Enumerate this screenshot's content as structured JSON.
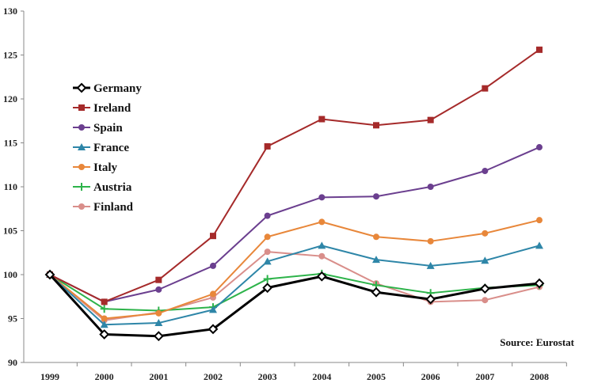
{
  "chart_data": {
    "type": "line",
    "title": "",
    "xlabel": "",
    "ylabel": "",
    "ylim": [
      90,
      130
    ],
    "yticks": [
      90,
      95,
      100,
      105,
      110,
      115,
      120,
      125,
      130
    ],
    "categories": [
      "1999",
      "2000",
      "2001",
      "2002",
      "2003",
      "2004",
      "2005",
      "2006",
      "2007",
      "2008"
    ],
    "grid": false,
    "legend_position": "left-middle",
    "source_note": "Source: Eurostat",
    "series": [
      {
        "name": "Germany",
        "color": "#000000",
        "marker": "diamond",
        "values": [
          100,
          93.2,
          93.0,
          93.8,
          98.5,
          99.8,
          98.0,
          97.2,
          98.4,
          99.0
        ]
      },
      {
        "name": "Ireland",
        "color": "#a52a2a",
        "marker": "square",
        "values": [
          100,
          96.9,
          99.4,
          104.4,
          114.6,
          117.7,
          117.0,
          117.6,
          121.2,
          125.6
        ]
      },
      {
        "name": "Spain",
        "color": "#6b3f8f",
        "marker": "circle",
        "values": [
          100,
          96.9,
          98.3,
          101.0,
          106.7,
          108.8,
          108.9,
          110.0,
          111.8,
          114.5
        ]
      },
      {
        "name": "France",
        "color": "#2e86a8",
        "marker": "triangle",
        "values": [
          100,
          94.3,
          94.5,
          96.0,
          101.5,
          103.3,
          101.7,
          101.0,
          101.6,
          103.3
        ]
      },
      {
        "name": "Italy",
        "color": "#e8873a",
        "marker": "circle",
        "values": [
          100,
          95.0,
          95.6,
          97.8,
          104.3,
          106.0,
          104.3,
          103.8,
          104.7,
          106.2
        ]
      },
      {
        "name": "Austria",
        "color": "#2db34a",
        "marker": "plus",
        "values": [
          100,
          96.1,
          95.9,
          96.3,
          99.5,
          100.1,
          98.8,
          97.9,
          98.5,
          98.8
        ]
      },
      {
        "name": "Finland",
        "color": "#d98e8a",
        "marker": "circle",
        "values": [
          100,
          94.8,
          95.7,
          97.4,
          102.6,
          102.1,
          99.0,
          96.9,
          97.1,
          98.6
        ]
      }
    ]
  }
}
